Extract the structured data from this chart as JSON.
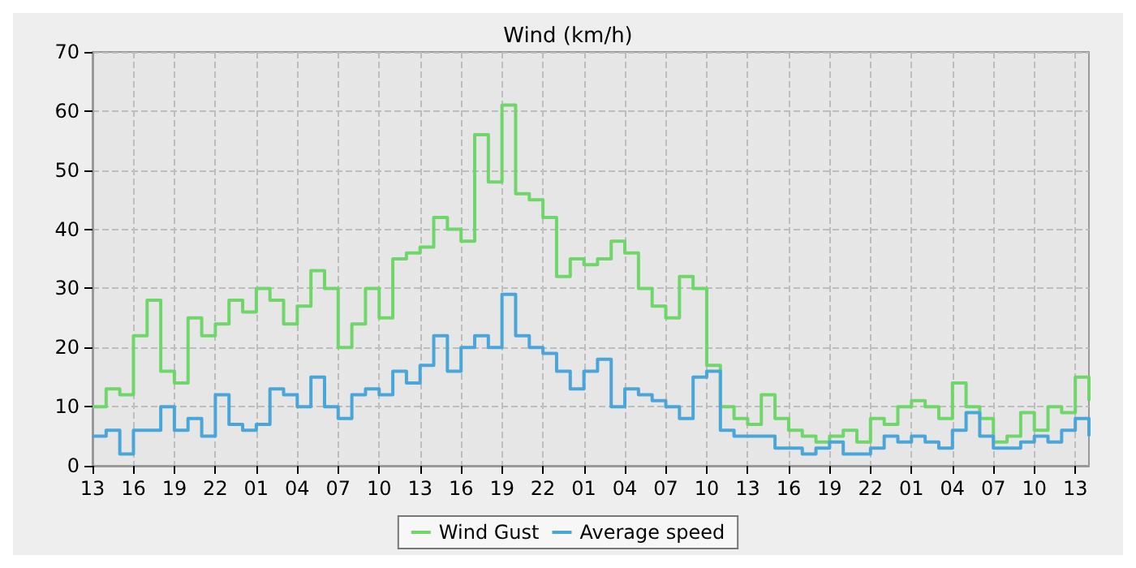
{
  "chart_data": {
    "type": "step",
    "title": "Wind (km/h)",
    "categories": [
      "13",
      null,
      null,
      "16",
      null,
      null,
      "19",
      null,
      null,
      "22",
      null,
      null,
      "01",
      null,
      null,
      "04",
      null,
      null,
      "07",
      null,
      null,
      "10",
      null,
      null,
      "13",
      null,
      null,
      "16",
      null,
      null,
      "19",
      null,
      null,
      "22",
      null,
      null,
      "01",
      null,
      null,
      "04",
      null,
      null,
      "07",
      null,
      null,
      "10",
      null,
      null,
      "13",
      null,
      null,
      "16",
      null,
      null,
      "19",
      null,
      null,
      "22",
      null,
      null,
      "01",
      null,
      null,
      "04",
      null,
      null,
      "07",
      null,
      null,
      "10",
      null,
      null,
      "13",
      null
    ],
    "series": [
      {
        "name": "Wind Gust",
        "color": "#6fd66a",
        "values": [
          10,
          13,
          12,
          22,
          28,
          16,
          14,
          25,
          22,
          24,
          28,
          26,
          30,
          28,
          24,
          27,
          33,
          30,
          20,
          24,
          30,
          25,
          35,
          36,
          37,
          42,
          40,
          38,
          56,
          48,
          61,
          46,
          45,
          42,
          32,
          35,
          34,
          35,
          38,
          36,
          30,
          27,
          25,
          32,
          30,
          17,
          10,
          8,
          7,
          12,
          8,
          6,
          5,
          4,
          5,
          6,
          4,
          8,
          7,
          10,
          11,
          10,
          8,
          14,
          10,
          8,
          4,
          5,
          9,
          6,
          10,
          9,
          15,
          11
        ]
      },
      {
        "name": "Average speed",
        "color": "#4aa6d9",
        "values": [
          5,
          6,
          2,
          6,
          6,
          10,
          6,
          8,
          5,
          12,
          7,
          6,
          7,
          13,
          12,
          10,
          15,
          10,
          8,
          12,
          13,
          12,
          16,
          14,
          17,
          22,
          16,
          20,
          22,
          20,
          29,
          22,
          20,
          19,
          16,
          13,
          16,
          18,
          10,
          13,
          12,
          11,
          10,
          8,
          15,
          16,
          6,
          5,
          5,
          5,
          3,
          3,
          2,
          3,
          4,
          2,
          2,
          3,
          5,
          4,
          5,
          4,
          3,
          6,
          9,
          5,
          3,
          3,
          4,
          5,
          4,
          6,
          8,
          5
        ]
      }
    ],
    "ylim": [
      0,
      70
    ],
    "yticks": [
      0,
      10,
      20,
      30,
      40,
      50,
      60,
      70
    ],
    "grid": true,
    "legend": "bottom",
    "marker": "none",
    "line_style": "solid"
  }
}
